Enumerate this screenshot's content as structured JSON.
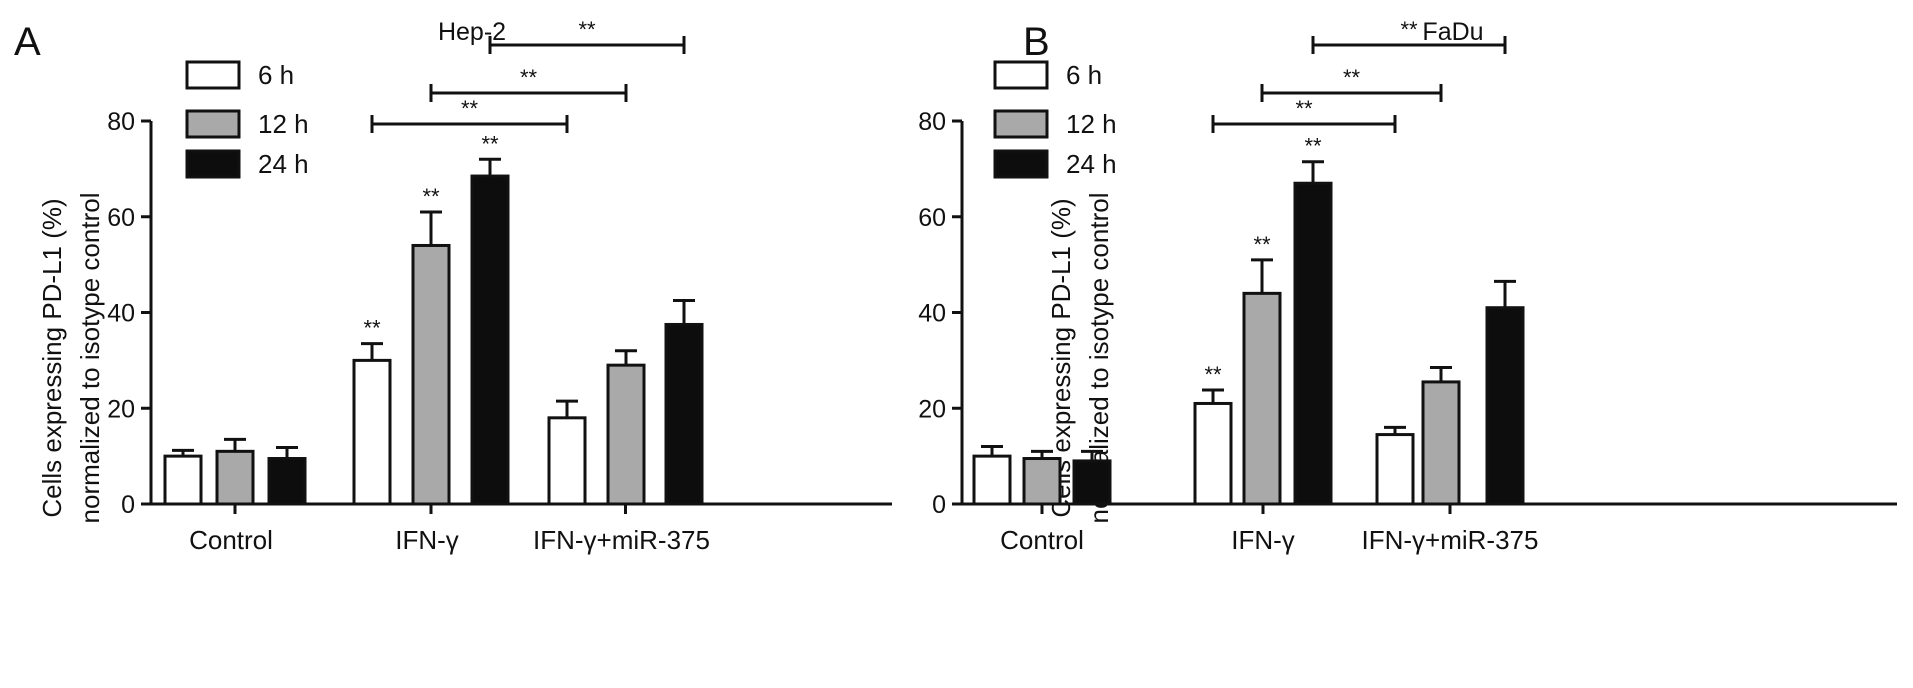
{
  "panels": [
    {
      "letter": "A",
      "title": "Hep-2",
      "ylabel_line1": "Cells expressing PD-L1 (%)",
      "ylabel_line2": "normalized to isotype control",
      "ylim": [
        0,
        80
      ],
      "yticks": [
        "0",
        "20",
        "40",
        "60",
        "80"
      ],
      "legend": [
        "6 h",
        "12 h",
        "24 h"
      ]
    },
    {
      "letter": "B",
      "title": "FaDu",
      "ylabel_line1": "Cells expressing PD-L1 (%)",
      "ylabel_line2": "normalized to isotype control",
      "ylim": [
        0,
        80
      ],
      "yticks": [
        "0",
        "20",
        "40",
        "60",
        "80"
      ],
      "legend": [
        "6 h",
        "12 h",
        "24 h"
      ]
    }
  ],
  "colors": {
    "6 h": "#ffffff",
    "12 h": "#a9a9a9",
    "24 h": "#0d0d0d",
    "stroke": "#111111"
  },
  "chart_data": [
    {
      "type": "bar",
      "title": "Hep-2",
      "categories": [
        "Control",
        "IFN-γ",
        "IFN-γ+miR-375"
      ],
      "series": [
        {
          "name": "6 h",
          "values": [
            10,
            30,
            18
          ],
          "errors": [
            1.2,
            3.5,
            3.5
          ]
        },
        {
          "name": "12 h",
          "values": [
            11,
            54,
            29
          ],
          "errors": [
            2.5,
            7,
            3
          ]
        },
        {
          "name": "24 h",
          "values": [
            9.5,
            68.5,
            37.5
          ],
          "errors": [
            2.3,
            3.5,
            5
          ]
        }
      ],
      "point_marks": [
        {
          "category": "IFN-γ",
          "series": "6 h",
          "label": "**"
        },
        {
          "category": "IFN-γ",
          "series": "12 h",
          "label": "**"
        },
        {
          "category": "IFN-γ",
          "series": "24 h",
          "label": "**"
        }
      ],
      "comparisons": [
        {
          "from": [
            "IFN-γ",
            "6 h"
          ],
          "to": [
            "IFN-γ+miR-375",
            "6 h"
          ],
          "label": "**"
        },
        {
          "from": [
            "IFN-γ",
            "12 h"
          ],
          "to": [
            "IFN-γ+miR-375",
            "12 h"
          ],
          "label": "**"
        },
        {
          "from": [
            "IFN-γ",
            "24 h"
          ],
          "to": [
            "IFN-γ+miR-375",
            "24 h"
          ],
          "label": "**"
        }
      ],
      "ylabel": "Cells expressing PD-L1 (%) normalized to isotype control",
      "ylim": [
        0,
        80
      ],
      "legend_placement": "top-left",
      "grid": false
    },
    {
      "type": "bar",
      "title": "FaDu",
      "categories": [
        "Control",
        "IFN-γ",
        "IFN-γ+miR-375"
      ],
      "series": [
        {
          "name": "6 h",
          "values": [
            10,
            21,
            14.5
          ],
          "errors": [
            2,
            2.8,
            1.5
          ]
        },
        {
          "name": "12 h",
          "values": [
            9.5,
            44,
            25.5
          ],
          "errors": [
            1.5,
            7,
            3
          ]
        },
        {
          "name": "24 h",
          "values": [
            9,
            67,
            41
          ],
          "errors": [
            2,
            4.5,
            5.5
          ]
        }
      ],
      "point_marks": [
        {
          "category": "IFN-γ",
          "series": "6 h",
          "label": "**"
        },
        {
          "category": "IFN-γ",
          "series": "12 h",
          "label": "**"
        },
        {
          "category": "IFN-γ",
          "series": "24 h",
          "label": "**"
        }
      ],
      "comparisons": [
        {
          "from": [
            "IFN-γ",
            "6 h"
          ],
          "to": [
            "IFN-γ+miR-375",
            "6 h"
          ],
          "label": "**"
        },
        {
          "from": [
            "IFN-γ",
            "12 h"
          ],
          "to": [
            "IFN-γ+miR-375",
            "12 h"
          ],
          "label": "**"
        },
        {
          "from": [
            "IFN-γ",
            "24 h"
          ],
          "to": [
            "IFN-γ+miR-375",
            "24 h"
          ],
          "label": "**"
        }
      ],
      "ylabel": "Cells expressing PD-L1 (%) normalized to isotype control",
      "ylim": [
        0,
        80
      ],
      "legend_placement": "top-left",
      "grid": false
    }
  ]
}
